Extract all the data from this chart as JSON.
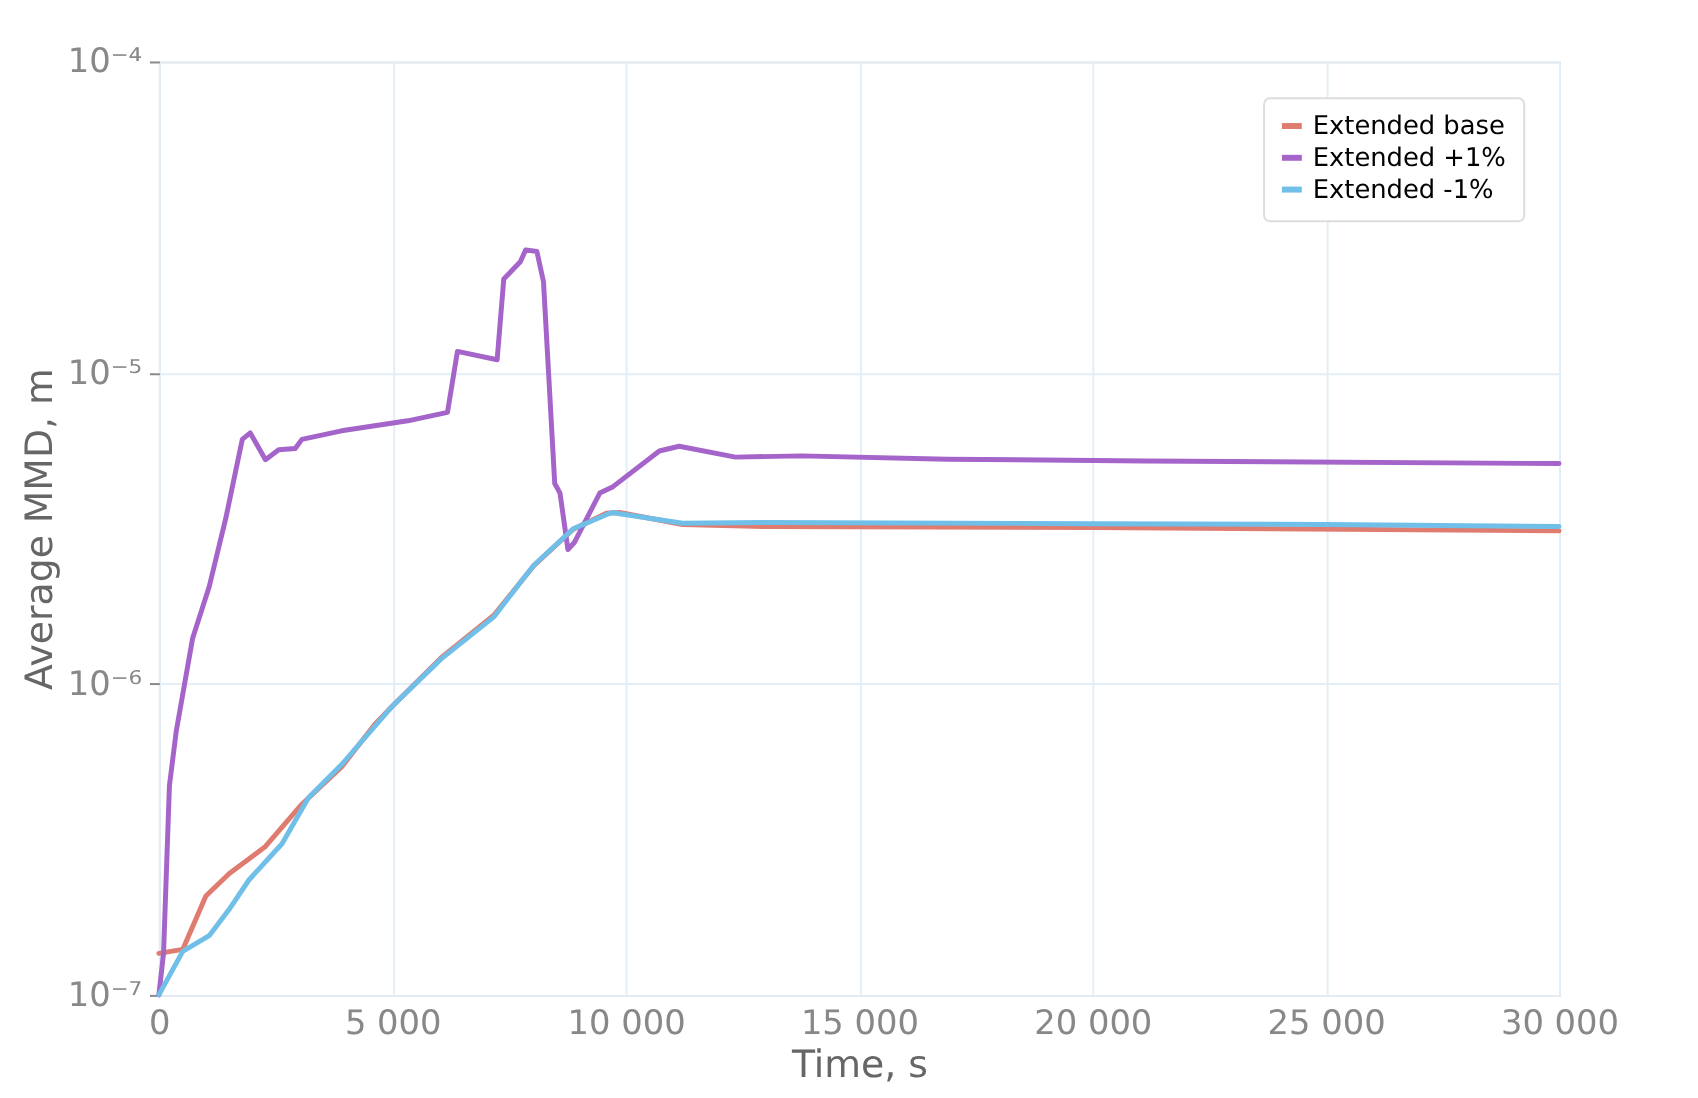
{
  "chart_data": {
    "type": "line",
    "xlabel": "Time, s",
    "ylabel": "Average MMD, m",
    "log": "y",
    "grid": true,
    "legend": "top right",
    "line_style": "solid",
    "marker": "none",
    "xlim": [
      0,
      30000
    ],
    "xticks": [
      0,
      {
        "value": 5000,
        "label": "5 000"
      },
      {
        "value": 10000,
        "label": "10 000"
      },
      {
        "value": 15000,
        "label": "15 000"
      },
      {
        "value": 20000,
        "label": "20 000"
      },
      {
        "value": 25000,
        "label": "25 000"
      },
      {
        "value": 30000,
        "label": "30 000"
      }
    ],
    "ylim": [
      1e-07,
      0.0001
    ],
    "yticks": [
      {
        "value": 1e-07,
        "label": "10⁻⁷"
      },
      {
        "value": 1e-06,
        "label": "10⁻⁶"
      },
      {
        "value": 1e-05,
        "label": "10⁻⁵"
      },
      {
        "value": 0.0001,
        "label": "10⁻⁴"
      }
    ],
    "series": [
      {
        "name": "Extended base",
        "color": "#e07b6f",
        "x": [
          0,
          511,
          1007,
          1503,
          2284,
          3064,
          3915,
          4624,
          4979,
          6043,
          7177,
          8028,
          8879,
          9589,
          9873,
          11220,
          13000,
          20000,
          30000
        ],
        "values": [
          1.36e-07,
          1.4e-07,
          2.08e-07,
          2.45e-07,
          3e-07,
          4.1e-07,
          5.4e-07,
          7.4e-07,
          8.4e-07,
          1.21e-06,
          1.66e-06,
          2.39e-06,
          3.14e-06,
          3.53e-06,
          3.55e-06,
          3.25e-06,
          3.2e-06,
          3.18e-06,
          3.1e-06
        ]
      },
      {
        "name": "Extended +1%",
        "color": "#a564c9",
        "x": [
          0,
          100,
          226,
          370,
          723,
          1078,
          1433,
          1787,
          1957,
          2284,
          2567,
          2922,
          3064,
          3915,
          5333,
          6184,
          6397,
          7248,
          7390,
          7745,
          7858,
          8100,
          8241,
          8482,
          8595,
          8765,
          8907,
          9447,
          9731,
          10723,
          11149,
          12355,
          13775,
          16894,
          21149,
          30000
        ],
        "values": [
          1e-07,
          1.36e-07,
          4.7e-07,
          7e-07,
          1.4e-06,
          2.05e-06,
          3.4e-06,
          6.1e-06,
          6.4e-06,
          5.25e-06,
          5.65e-06,
          5.7e-06,
          6.1e-06,
          6.5e-06,
          7e-06,
          7.45e-06,
          1.17e-05,
          1.1e-05,
          2e-05,
          2.27e-05,
          2.48e-05,
          2.45e-05,
          1.96e-05,
          4.4e-06,
          4.1e-06,
          2.7e-06,
          2.85e-06,
          4.1e-06,
          4.3e-06,
          5.6e-06,
          5.8e-06,
          5.35e-06,
          5.4e-06,
          5.27e-06,
          5.2e-06,
          5.1e-06
        ]
      },
      {
        "name": "Extended -1%",
        "color": "#6fbfe8",
        "x": [
          0,
          511,
          1078,
          1503,
          1929,
          2638,
          3205,
          3915,
          4979,
          6043,
          7177,
          8028,
          8879,
          9700,
          11220,
          13000,
          20000,
          25000,
          30000
        ],
        "values": [
          1e-07,
          1.38e-07,
          1.55e-07,
          1.88e-07,
          2.34e-07,
          3.06e-07,
          4.3e-07,
          5.5e-07,
          8.4e-07,
          1.2e-06,
          1.64e-06,
          2.4e-06,
          3.15e-06,
          3.55e-06,
          3.28e-06,
          3.3e-06,
          3.27e-06,
          3.25e-06,
          3.2e-06
        ]
      }
    ]
  }
}
